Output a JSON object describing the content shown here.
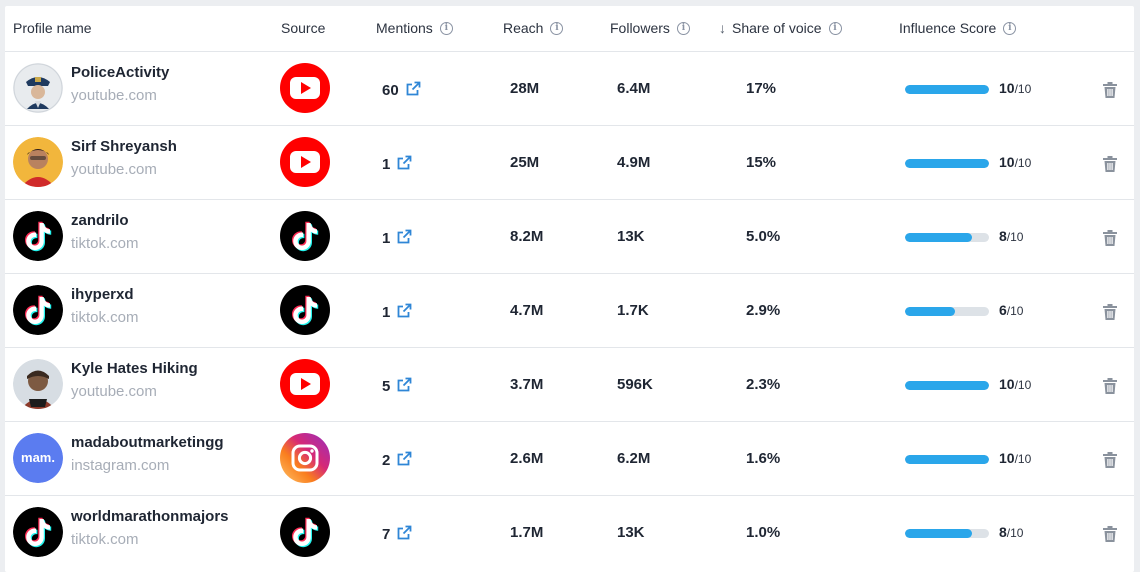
{
  "table": {
    "columns": {
      "profile": "Profile name",
      "source": "Source",
      "mentions": "Mentions",
      "reach": "Reach",
      "followers": "Followers",
      "share_of_voice": "Share of voice",
      "influence_score": "Influence Score"
    },
    "sorted_column": "share_of_voice",
    "sort_direction": "descending",
    "score_denominator": "/10",
    "colors": {
      "bar_fill": "#2aa6ea",
      "bar_track": "#dde2e7",
      "youtube_red": "#ff0000",
      "tiktok_black": "#000000",
      "link_blue": "#2f86d6"
    },
    "rows": [
      {
        "name": "PoliceActivity",
        "domain": "youtube.com",
        "source": "youtube",
        "avatar": "police-avatar",
        "mentions": "60",
        "reach": "28M",
        "followers": "6.4M",
        "sov": "17%",
        "score": "10",
        "score_value": 10
      },
      {
        "name": "Sirf Shreyansh",
        "domain": "youtube.com",
        "source": "youtube",
        "avatar": "person-avatar",
        "mentions": "1",
        "reach": "25M",
        "followers": "4.9M",
        "sov": "15%",
        "score": "10",
        "score_value": 10
      },
      {
        "name": "zandrilo",
        "domain": "tiktok.com",
        "source": "tiktok",
        "avatar": "tiktok-avatar",
        "mentions": "1",
        "reach": "8.2M",
        "followers": "13K",
        "sov": "5.0%",
        "score": "8",
        "score_value": 8
      },
      {
        "name": "ihyperxd",
        "domain": "tiktok.com",
        "source": "tiktok",
        "avatar": "tiktok-avatar",
        "mentions": "1",
        "reach": "4.7M",
        "followers": "1.7K",
        "sov": "2.9%",
        "score": "6",
        "score_value": 6
      },
      {
        "name": "Kyle Hates Hiking",
        "domain": "youtube.com",
        "source": "youtube",
        "avatar": "hiker-avatar",
        "mentions": "5",
        "reach": "3.7M",
        "followers": "596K",
        "sov": "2.3%",
        "score": "10",
        "score_value": 10
      },
      {
        "name": "madaboutmarketingg",
        "domain": "instagram.com",
        "source": "instagram",
        "avatar": "mam-avatar",
        "avatar_text": "mam.",
        "mentions": "2",
        "reach": "2.6M",
        "followers": "6.2M",
        "sov": "1.6%",
        "score": "10",
        "score_value": 10
      },
      {
        "name": "worldmarathonmajors",
        "domain": "tiktok.com",
        "source": "tiktok",
        "avatar": "tiktok-avatar",
        "mentions": "7",
        "reach": "1.7M",
        "followers": "13K",
        "sov": "1.0%",
        "score": "8",
        "score_value": 8
      }
    ]
  }
}
